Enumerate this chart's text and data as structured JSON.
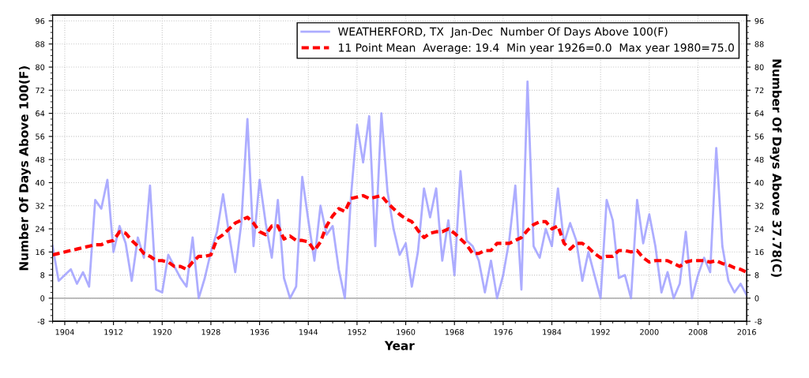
{
  "chart_data": {
    "type": "line",
    "xlabel": "Year",
    "ylabel": "Number Of Days Above 100(F)",
    "y2label": "Number Of Days Above 37.78(C)",
    "x": [
      1902,
      1903,
      1904,
      1905,
      1906,
      1907,
      1908,
      1909,
      1910,
      1911,
      1912,
      1913,
      1914,
      1915,
      1916,
      1917,
      1918,
      1919,
      1920,
      1921,
      1922,
      1923,
      1924,
      1925,
      1926,
      1927,
      1928,
      1929,
      1930,
      1931,
      1932,
      1933,
      1934,
      1935,
      1936,
      1937,
      1938,
      1939,
      1940,
      1941,
      1942,
      1943,
      1944,
      1945,
      1946,
      1947,
      1948,
      1949,
      1950,
      1951,
      1952,
      1953,
      1954,
      1955,
      1956,
      1957,
      1958,
      1959,
      1960,
      1961,
      1962,
      1963,
      1964,
      1965,
      1966,
      1967,
      1968,
      1969,
      1970,
      1971,
      1972,
      1973,
      1974,
      1975,
      1976,
      1977,
      1978,
      1979,
      1980,
      1981,
      1982,
      1983,
      1984,
      1985,
      1986,
      1987,
      1988,
      1989,
      1990,
      1991,
      1992,
      1993,
      1994,
      1995,
      1996,
      1997,
      1998,
      1999,
      2000,
      2001,
      2002,
      2003,
      2004,
      2005,
      2006,
      2007,
      2008,
      2009,
      2010,
      2011,
      2012,
      2013,
      2014,
      2015,
      2016
    ],
    "series": [
      {
        "name": "WEATHERFORD, TX  Jan-Dec  Number Of Days Above 100(F)",
        "color": "#9999ff",
        "line_style": "solid",
        "values": [
          18,
          6,
          8,
          10,
          5,
          9,
          4,
          34,
          31,
          41,
          16,
          25,
          19,
          6,
          21,
          14,
          39,
          3,
          2,
          15,
          11,
          7,
          4,
          21,
          0,
          7,
          16,
          23,
          36,
          22,
          9,
          26,
          62,
          18,
          41,
          26,
          14,
          34,
          7,
          0,
          4,
          42,
          27,
          13,
          32,
          22,
          25,
          10,
          0,
          35,
          60,
          47,
          63,
          18,
          64,
          37,
          24,
          15,
          19,
          4,
          16,
          38,
          28,
          38,
          13,
          27,
          8,
          44,
          20,
          18,
          13,
          2,
          13,
          0,
          8,
          20,
          39,
          3,
          75,
          18,
          14,
          24,
          18,
          38,
          19,
          26,
          20,
          6,
          16,
          8,
          0,
          34,
          27,
          7,
          8,
          0,
          34,
          19,
          29,
          18,
          2,
          9,
          0,
          5,
          23,
          0,
          8,
          14,
          9,
          52,
          18,
          6,
          2,
          5,
          1
        ]
      },
      {
        "name": "11 Point Mean  Average: 19.4  Min year 1926=0.0  Max year 1980=75.0",
        "color": "#ff0000",
        "line_style": "dashed",
        "values": [
          15,
          15.5,
          16,
          16.5,
          17,
          17.5,
          18,
          18.5,
          18.5,
          19.5,
          20,
          23,
          22.5,
          20,
          18,
          15.5,
          14.5,
          13,
          13,
          12.5,
          11,
          11,
          10,
          12.5,
          14.5,
          14.5,
          15,
          20.5,
          22,
          24,
          26,
          27,
          28,
          26,
          23,
          22,
          25,
          25,
          20.5,
          21.5,
          20,
          20,
          19.5,
          16.5,
          19.5,
          25,
          28.5,
          31,
          30,
          34.5,
          35,
          35.5,
          34.5,
          35,
          35.5,
          33,
          31,
          29,
          27.5,
          26.5,
          23.5,
          21,
          22.5,
          23,
          23,
          24,
          22.5,
          20.5,
          18.5,
          15.5,
          15.5,
          16.5,
          16.5,
          19,
          19,
          19,
          20,
          21,
          23.5,
          25.5,
          26.5,
          26.5,
          24,
          25,
          19,
          17,
          19,
          19,
          17.5,
          15.5,
          14,
          14.5,
          14.5,
          16.5,
          16.5,
          16,
          16.5,
          14,
          12.5,
          13,
          13,
          13,
          12,
          11,
          12.5,
          13,
          13,
          13,
          12.5,
          13,
          12,
          11.5,
          10.5,
          10,
          9
        ]
      }
    ],
    "xlim": [
      1902,
      2016
    ],
    "xticks": [
      1904,
      1912,
      1920,
      1928,
      1936,
      1944,
      1952,
      1960,
      1968,
      1976,
      1984,
      1992,
      2000,
      2008,
      2016
    ],
    "ylim": [
      -8,
      98
    ],
    "yticks": [
      -8,
      0,
      8,
      16,
      24,
      32,
      40,
      48,
      56,
      64,
      72,
      80,
      88,
      96
    ],
    "y2lim": [
      -8,
      98
    ],
    "y2ticks": [
      -8,
      0,
      8,
      16,
      24,
      32,
      40,
      48,
      56,
      64,
      72,
      80,
      88,
      96
    ],
    "ref_lines": [
      {
        "axis": "y",
        "value": 0,
        "color": "#b4b4b4",
        "line_style": "solid"
      }
    ],
    "grid": true,
    "legend": "top right",
    "marker": "none"
  }
}
